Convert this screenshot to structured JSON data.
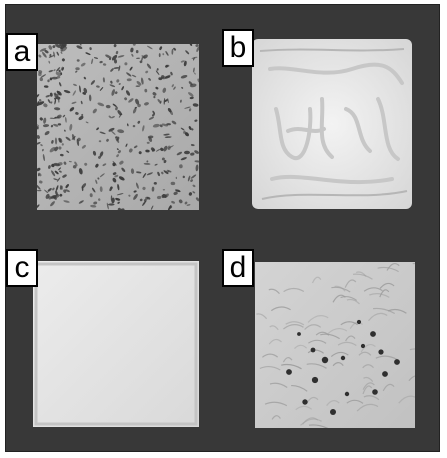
{
  "panels": [
    {
      "label": "a"
    },
    {
      "label": "b"
    },
    {
      "label": "c"
    },
    {
      "label": "d"
    }
  ],
  "colors": {
    "background": "#383838",
    "label_bg": "#ffffff",
    "label_border": "#000000"
  }
}
